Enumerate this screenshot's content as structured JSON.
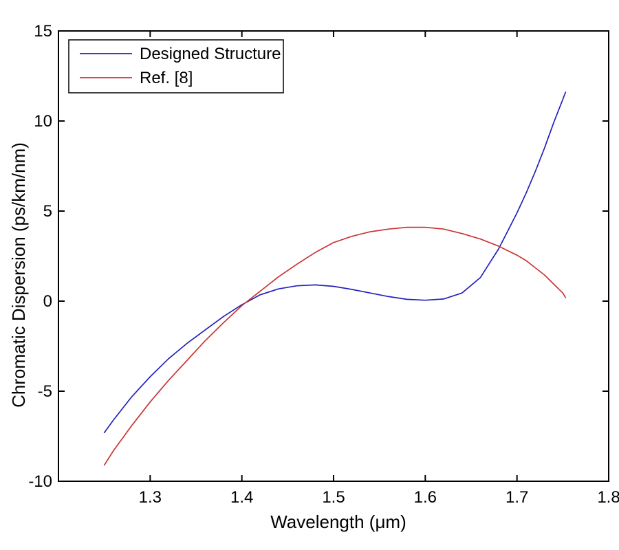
{
  "figure": {
    "background": "#ffffff",
    "axis_color": "#000000"
  },
  "chart_data": {
    "type": "line",
    "title": "",
    "xlabel": "Wavelength (μm)",
    "ylabel": "Chromatic Dispersion (ps/km/nm)",
    "xlim": [
      1.2,
      1.8
    ],
    "ylim": [
      -10,
      15
    ],
    "xticks": [
      1.3,
      1.4,
      1.5,
      1.6,
      1.7,
      1.8
    ],
    "yticks": [
      -10,
      -5,
      0,
      5,
      10,
      15
    ],
    "grid": false,
    "legend_position": "top-left",
    "x": [
      1.25,
      1.26,
      1.28,
      1.3,
      1.32,
      1.34,
      1.36,
      1.38,
      1.4,
      1.42,
      1.44,
      1.46,
      1.48,
      1.5,
      1.52,
      1.54,
      1.56,
      1.58,
      1.6,
      1.62,
      1.64,
      1.66,
      1.68,
      1.7,
      1.71,
      1.72,
      1.73,
      1.74,
      1.75,
      1.753
    ],
    "series": [
      {
        "name": "Designed Structure",
        "color": "#2222bb",
        "values": [
          -7.3,
          -6.6,
          -5.3,
          -4.2,
          -3.2,
          -2.35,
          -1.6,
          -0.85,
          -0.2,
          0.35,
          0.68,
          0.85,
          0.9,
          0.82,
          0.65,
          0.45,
          0.25,
          0.1,
          0.05,
          0.12,
          0.45,
          1.3,
          2.9,
          4.9,
          6.0,
          7.2,
          8.5,
          9.9,
          11.2,
          11.6
        ]
      },
      {
        "name": "Ref. [8]",
        "color": "#cc3333",
        "values": [
          -9.1,
          -8.3,
          -6.9,
          -5.6,
          -4.4,
          -3.3,
          -2.2,
          -1.2,
          -0.25,
          0.55,
          1.35,
          2.05,
          2.7,
          3.25,
          3.6,
          3.85,
          4.0,
          4.1,
          4.1,
          4.0,
          3.75,
          3.45,
          3.05,
          2.55,
          2.25,
          1.85,
          1.45,
          0.95,
          0.45,
          0.2
        ]
      }
    ]
  }
}
